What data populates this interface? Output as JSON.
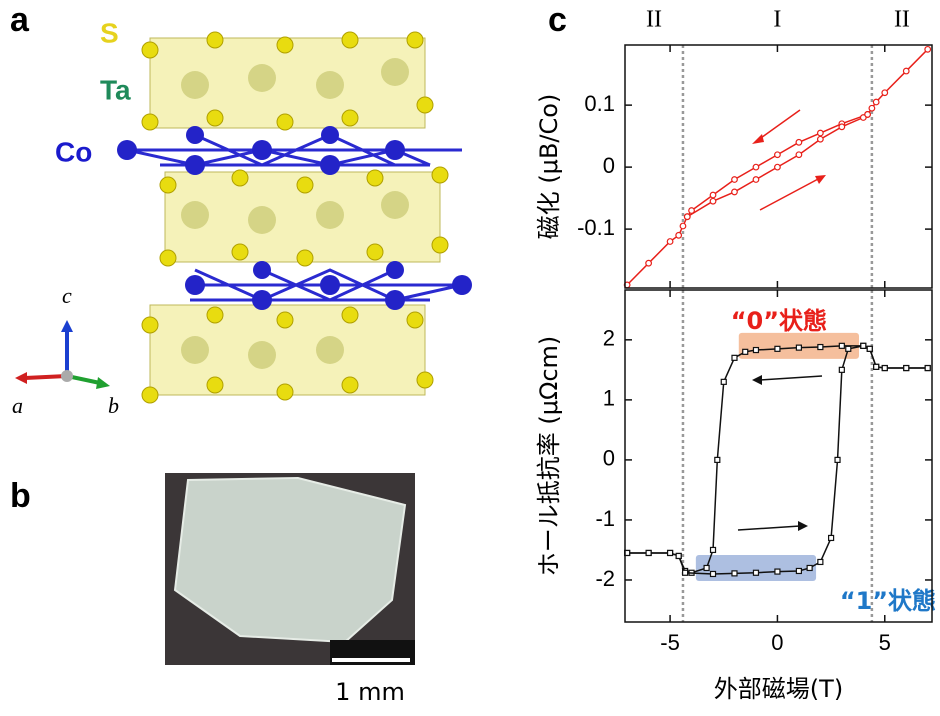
{
  "panels": [
    "a",
    "b",
    "c"
  ],
  "elements": {
    "S": "S",
    "Ta": "Ta",
    "Co": "Co"
  },
  "axes_labels": {
    "c": "c",
    "a": "a",
    "b": "b"
  },
  "scale_bar": "1 mm",
  "chart_data": [
    {
      "type": "line",
      "ylabel": "磁化 (μB/Co)",
      "xlim": [
        -7.1,
        7.2
      ],
      "xticks": [
        -5,
        0,
        5
      ],
      "ylim": [
        -0.195,
        0.197
      ],
      "yticks": [
        0.1,
        0,
        -0.1
      ],
      "regions": [
        "II",
        "I",
        "II"
      ],
      "vlines": [
        -4.4,
        4.4
      ],
      "marker": "circle",
      "series": [
        {
          "color": "#e8201a",
          "x": [
            7,
            6,
            5,
            4.6,
            4.4,
            4.2,
            3,
            2,
            1,
            0,
            -1,
            -2,
            -3,
            -4,
            -4.2,
            -4.4,
            -4.6,
            -5,
            -6,
            -7
          ],
          "values": [
            0.19,
            0.155,
            0.12,
            0.105,
            0.095,
            0.085,
            0.07,
            0.055,
            0.04,
            0.02,
            0.0,
            -0.02,
            -0.045,
            -0.07,
            -0.08,
            -0.095,
            -0.11,
            -0.12,
            -0.155,
            -0.19
          ]
        },
        {
          "color": "#e8201a",
          "x": [
            -4.2,
            -3,
            -2,
            -1,
            0,
            1,
            2,
            3,
            4,
            4.2
          ],
          "values": [
            -0.08,
            -0.055,
            -0.04,
            -0.02,
            0.0,
            0.02,
            0.045,
            0.065,
            0.08,
            0.085
          ]
        }
      ]
    },
    {
      "type": "line",
      "ylabel": "ホール抵抗率 (μΩcm)",
      "xlabel": "外部磁場(T)",
      "xlim": [
        -7.1,
        7.2
      ],
      "xticks": [
        -5,
        0,
        5
      ],
      "ylim": [
        -2.7,
        2.83
      ],
      "yticks": [
        2,
        1,
        0,
        -1,
        -2
      ],
      "vlines": [
        -4.4,
        4.4
      ],
      "marker": "square",
      "bands": [
        {
          "label": "“0”状態",
          "color": "#f3b48c",
          "label_color": "#e8201a",
          "x": [
            -1.8,
            3.8
          ],
          "y": 1.9
        },
        {
          "label": "“1”状態",
          "color": "#9fb4dc",
          "label_color": "#1f78c8",
          "x": [
            -3.8,
            1.8
          ],
          "y": -1.8
        }
      ],
      "series": [
        {
          "color": "#111111",
          "x": [
            7,
            6,
            5,
            4.6,
            4.3,
            4,
            3,
            2,
            1,
            0,
            -1,
            -1.5,
            -2,
            -2.5,
            -2.8,
            -3,
            -3.3,
            -4,
            -4.3,
            -4.6,
            -5,
            -6,
            -7
          ],
          "values": [
            1.53,
            1.53,
            1.53,
            1.55,
            1.85,
            1.9,
            1.9,
            1.88,
            1.87,
            1.85,
            1.83,
            1.8,
            1.7,
            1.3,
            0,
            -1.5,
            -1.8,
            -1.88,
            -1.85,
            -1.6,
            -1.55,
            -1.55,
            -1.55
          ]
        },
        {
          "color": "#111111",
          "x": [
            -7,
            -6,
            -5,
            -4.6,
            -4.3,
            -3,
            -2,
            -1,
            0,
            1,
            1.5,
            2,
            2.5,
            2.8,
            3,
            3.3,
            4,
            4.3,
            4.6,
            5,
            6,
            7
          ],
          "values": [
            -1.55,
            -1.55,
            -1.55,
            -1.6,
            -1.88,
            -1.9,
            -1.89,
            -1.88,
            -1.86,
            -1.85,
            -1.8,
            -1.7,
            -1.3,
            0,
            1.5,
            1.85,
            1.9,
            1.85,
            1.55,
            1.53,
            1.53,
            1.53
          ]
        }
      ]
    }
  ]
}
